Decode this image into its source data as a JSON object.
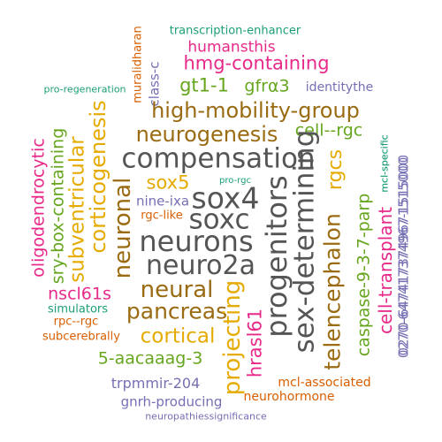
{
  "title": "Word cloud",
  "colors": {
    "gray": "#555555",
    "brown": "#9a6b12",
    "gold": "#e6ab02",
    "green": "#66a61e",
    "teal": "#1b9e77",
    "orange": "#d95f02",
    "purple": "#7570b3",
    "magenta": "#e7298a"
  },
  "words": [
    {
      "text": "transcription-enhancer",
      "color": "teal"
    },
    {
      "text": "humansthis",
      "color": "magenta"
    },
    {
      "text": "hmg-containing",
      "color": "magenta"
    },
    {
      "text": "muralidharan",
      "color": "orange"
    },
    {
      "text": "class-c",
      "color": "purple"
    },
    {
      "text": "pro-regeneration",
      "color": "teal"
    },
    {
      "text": "gt1-1",
      "color": "green"
    },
    {
      "text": "gfrα3",
      "color": "green"
    },
    {
      "text": "identitythe",
      "color": "purple"
    },
    {
      "text": "high-mobility-group",
      "color": "brown"
    },
    {
      "text": "corticogenesis",
      "color": "gold"
    },
    {
      "text": "neurogenesis",
      "color": "brown"
    },
    {
      "text": "cell--rgc",
      "color": "green"
    },
    {
      "text": "mcl-specific",
      "color": "teal"
    },
    {
      "text": "0270-6474173749671515000",
      "color": "purple"
    },
    {
      "text": "compensation",
      "color": "gray"
    },
    {
      "text": "oligodendrocytic",
      "color": "magenta"
    },
    {
      "text": "sry-box-containing",
      "color": "green"
    },
    {
      "text": "subventricular",
      "color": "gold"
    },
    {
      "text": "neuronal",
      "color": "brown"
    },
    {
      "text": "sex-determining",
      "color": "gray"
    },
    {
      "text": "rgcs",
      "color": "gold"
    },
    {
      "text": "sox5",
      "color": "gold"
    },
    {
      "text": "pro-rgc",
      "color": "teal"
    },
    {
      "text": "mcl-specific",
      "color": "teal"
    },
    {
      "text": "sox4",
      "color": "gray"
    },
    {
      "text": "nine-ixa",
      "color": "purple"
    },
    {
      "text": "soxc",
      "color": "gray"
    },
    {
      "text": "rgc-like",
      "color": "orange"
    },
    {
      "text": "progenitors",
      "color": "gray"
    },
    {
      "text": "telencephalon",
      "color": "brown"
    },
    {
      "text": "caspase-9-3-7-parp",
      "color": "green"
    },
    {
      "text": "cell-transplant",
      "color": "magenta"
    },
    {
      "text": "0270-647417374967-1515000",
      "color": "purple"
    },
    {
      "text": "neurons",
      "color": "gray"
    },
    {
      "text": "neuro2a",
      "color": "gray"
    },
    {
      "text": "neural",
      "color": "brown"
    },
    {
      "text": "nscl61s",
      "color": "magenta"
    },
    {
      "text": "simulators",
      "color": "teal"
    },
    {
      "text": "rpc--rgc",
      "color": "orange"
    },
    {
      "text": "pancreas",
      "color": "brown"
    },
    {
      "text": "projecting",
      "color": "gold"
    },
    {
      "text": "hrasl61",
      "color": "magenta"
    },
    {
      "text": "subcerebrally",
      "color": "orange"
    },
    {
      "text": "cortical",
      "color": "gold"
    },
    {
      "text": "5-aacaaag-3",
      "color": "green"
    },
    {
      "text": "trpmmir-204",
      "color": "purple"
    },
    {
      "text": "mcl-associated",
      "color": "orange"
    },
    {
      "text": "gnrh-producing",
      "color": "purple"
    },
    {
      "text": "neurohormone",
      "color": "orange"
    },
    {
      "text": "neuropathiessignificance",
      "color": "purple"
    }
  ]
}
